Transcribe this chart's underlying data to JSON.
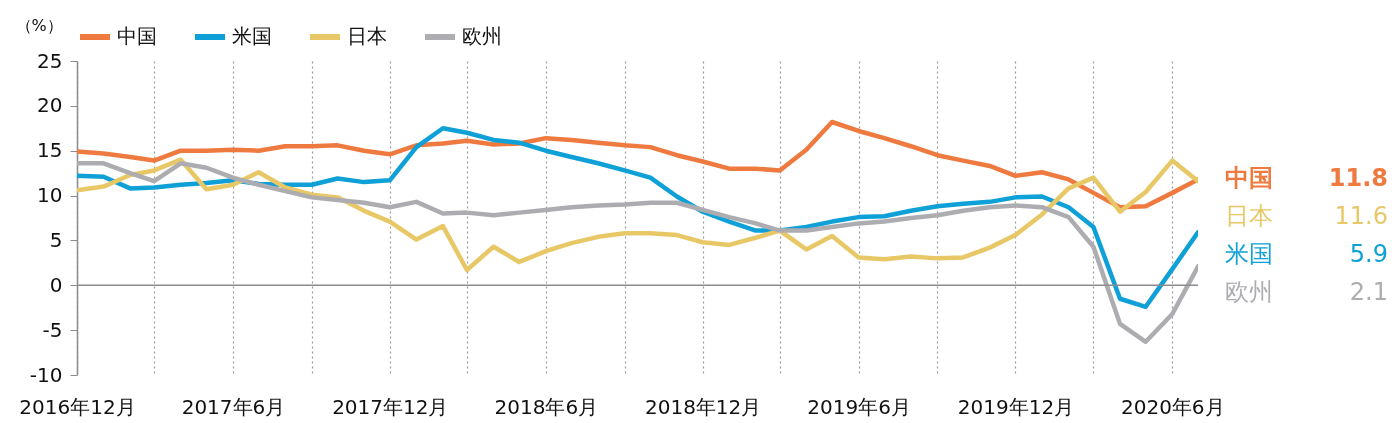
{
  "chart_data": {
    "type": "line",
    "ylabel": "（%）",
    "x": [
      "2016-12",
      "2017-01",
      "2017-02",
      "2017-03",
      "2017-04",
      "2017-05",
      "2017-06",
      "2017-07",
      "2017-08",
      "2017-09",
      "2017-10",
      "2017-11",
      "2017-12",
      "2018-01",
      "2018-02",
      "2018-03",
      "2018-04",
      "2018-05",
      "2018-06",
      "2018-07",
      "2018-08",
      "2018-09",
      "2018-10",
      "2018-11",
      "2018-12",
      "2019-01",
      "2019-02",
      "2019-03",
      "2019-04",
      "2019-05",
      "2019-06",
      "2019-07",
      "2019-08",
      "2019-09",
      "2019-10",
      "2019-11",
      "2019-12",
      "2020-01",
      "2020-02",
      "2020-03",
      "2020-04",
      "2020-05",
      "2020-06",
      "2020-07"
    ],
    "series": [
      {
        "name": "中国",
        "color": "#ef7a40",
        "values": [
          14.9,
          14.7,
          14.3,
          13.9,
          15.0,
          15.0,
          15.1,
          15.0,
          15.5,
          15.5,
          15.6,
          15.0,
          14.6,
          15.6,
          15.8,
          16.1,
          15.7,
          15.8,
          16.4,
          16.2,
          15.9,
          15.6,
          15.4,
          14.5,
          13.8,
          13.0,
          13.0,
          12.8,
          15.1,
          18.2,
          17.2,
          16.4,
          15.5,
          14.5,
          13.9,
          13.3,
          12.2,
          12.6,
          11.8,
          10.3,
          8.7,
          8.8,
          10.3,
          11.8
        ]
      },
      {
        "name": "米国",
        "color": "#0ea0d6",
        "values": [
          12.2,
          12.1,
          10.8,
          10.9,
          11.2,
          11.4,
          11.7,
          11.3,
          11.2,
          11.2,
          11.9,
          11.5,
          11.7,
          15.4,
          17.5,
          17.0,
          16.2,
          15.9,
          15.0,
          14.3,
          13.6,
          12.8,
          12.0,
          9.9,
          8.2,
          7.1,
          6.1,
          6.1,
          6.5,
          7.1,
          7.6,
          7.7,
          8.3,
          8.8,
          9.1,
          9.3,
          9.8,
          9.9,
          8.7,
          6.5,
          -1.5,
          -2.4,
          1.8,
          5.9
        ]
      },
      {
        "name": "日本",
        "color": "#e8c866",
        "values": [
          10.6,
          11.0,
          12.3,
          12.8,
          14.0,
          10.7,
          11.2,
          12.6,
          10.9,
          10.1,
          9.8,
          8.3,
          7.1,
          5.1,
          6.6,
          1.7,
          4.3,
          2.6,
          3.8,
          4.7,
          5.4,
          5.8,
          5.8,
          5.6,
          4.8,
          4.5,
          5.3,
          6.1,
          4.0,
          5.5,
          3.1,
          2.9,
          3.2,
          3.0,
          3.1,
          4.2,
          5.6,
          7.9,
          10.8,
          12.0,
          8.2,
          10.4,
          13.9,
          11.6
        ]
      },
      {
        "name": "欧州",
        "color": "#adadb1",
        "values": [
          13.6,
          13.6,
          12.5,
          11.6,
          13.6,
          13.1,
          12.0,
          11.2,
          10.5,
          9.8,
          9.5,
          9.2,
          8.7,
          9.3,
          8.0,
          8.1,
          7.8,
          8.1,
          8.4,
          8.7,
          8.9,
          9.0,
          9.2,
          9.2,
          8.4,
          7.6,
          6.9,
          6.1,
          6.1,
          6.5,
          6.9,
          7.1,
          7.5,
          7.8,
          8.3,
          8.7,
          8.9,
          8.7,
          7.6,
          4.3,
          -4.3,
          -6.3,
          -3.2,
          2.1
        ]
      }
    ],
    "annotations": [
      "11.8",
      "11.6",
      "5.9",
      "2.1"
    ],
    "xlim": [
      "2016-12",
      "2020-07"
    ],
    "xticks": [
      {
        "value": "2016-12",
        "label": "2016年12月"
      },
      {
        "value": "2017-03",
        "label": null
      },
      {
        "value": "2017-06",
        "label": "2017年6月"
      },
      {
        "value": "2017-09",
        "label": null
      },
      {
        "value": "2017-12",
        "label": "2017年12月"
      },
      {
        "value": "2018-03",
        "label": null
      },
      {
        "value": "2018-06",
        "label": "2018年6月"
      },
      {
        "value": "2018-09",
        "label": null
      },
      {
        "value": "2018-12",
        "label": "2018年12月"
      },
      {
        "value": "2019-03",
        "label": null
      },
      {
        "value": "2019-06",
        "label": "2019年6月"
      },
      {
        "value": "2019-09",
        "label": null
      },
      {
        "value": "2019-12",
        "label": "2019年12月"
      },
      {
        "value": "2020-03",
        "label": null
      },
      {
        "value": "2020-06",
        "label": "2020年6月"
      }
    ],
    "ylim": [
      -10,
      25
    ],
    "yticks": [
      -10,
      -5,
      0,
      5,
      10,
      15,
      20,
      25
    ],
    "grid": "x",
    "legend": "top",
    "marker": "none",
    "line_style": "solid",
    "ref_lines": [
      {
        "axis": "y",
        "value": 0,
        "color": "#8c8c8c"
      }
    ]
  }
}
